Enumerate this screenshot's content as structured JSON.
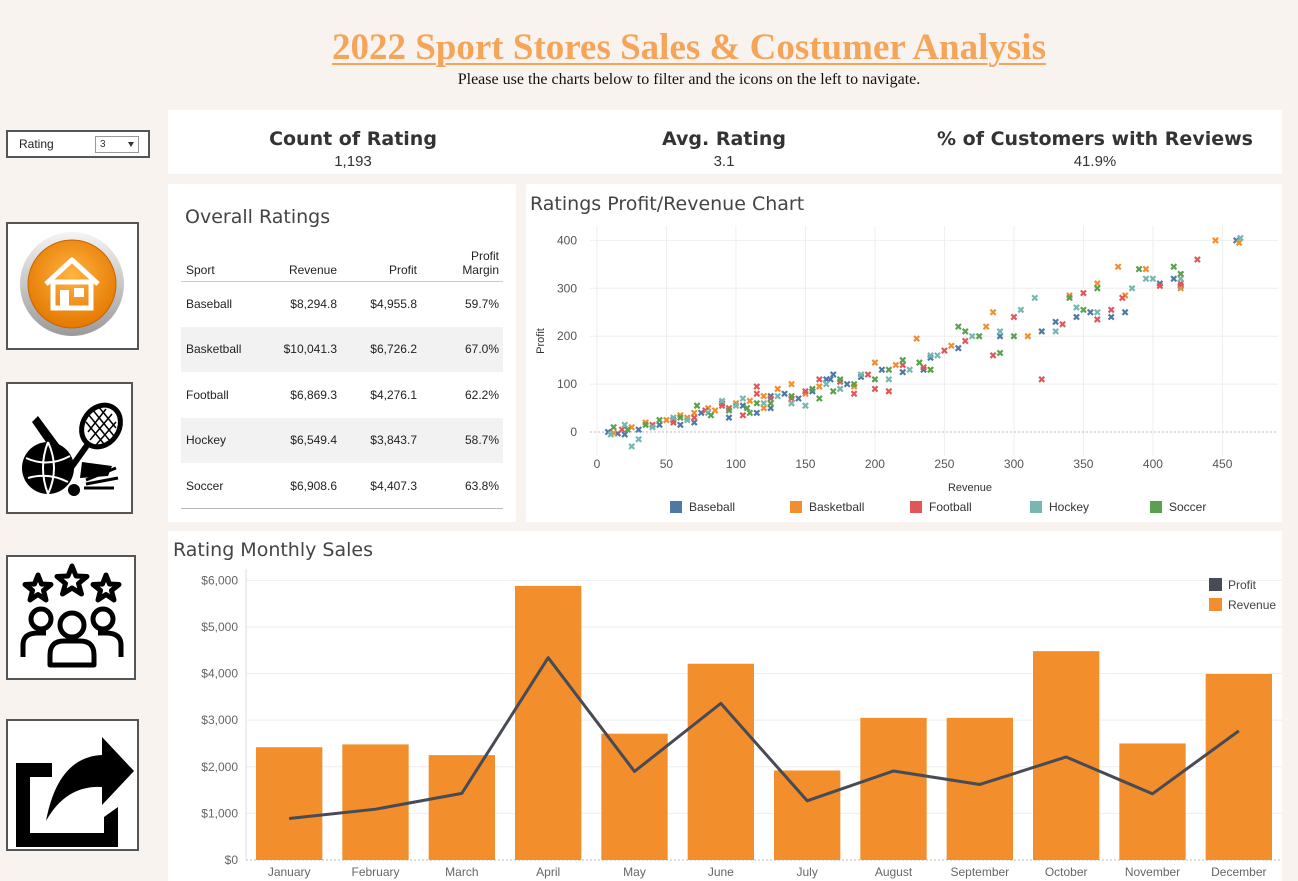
{
  "header": {
    "title": "2022 Sport Stores Sales & Costumer Analysis",
    "subtitle": "Please use the charts below to filter and the icons on the left to navigate."
  },
  "filter": {
    "label": "Rating",
    "value": "3"
  },
  "nav": [
    {
      "name": "home-icon"
    },
    {
      "name": "sports-icon"
    },
    {
      "name": "customers-rating-icon"
    },
    {
      "name": "share-icon"
    }
  ],
  "kpis": [
    {
      "title": "Count of Rating",
      "value": "1,193"
    },
    {
      "title": "Avg. Rating",
      "value": "3.1"
    },
    {
      "title": "% of Customers with Reviews",
      "value": "41.9%"
    }
  ],
  "overall": {
    "title": "Overall Ratings",
    "columns": [
      "Sport",
      "Revenue",
      "Profit",
      "Profit Margin"
    ],
    "rows": [
      [
        "Baseball",
        "$8,294.8",
        "$4,955.8",
        "59.7%"
      ],
      [
        "Basketball",
        "$10,041.3",
        "$6,726.2",
        "67.0%"
      ],
      [
        "Football",
        "$6,869.3",
        "$4,276.1",
        "62.2%"
      ],
      [
        "Hockey",
        "$6,549.4",
        "$3,843.7",
        "58.7%"
      ],
      [
        "Soccer",
        "$6,908.6",
        "$4,407.3",
        "63.8%"
      ]
    ]
  },
  "colors": {
    "Baseball": "#4e79a7",
    "Basketball": "#f28e2b",
    "Football": "#e15759",
    "Hockey": "#76b7b2",
    "Soccer": "#59a14f",
    "profit_line": "#474b55",
    "revenue_bar": "#f28e2b"
  },
  "chart_data": [
    {
      "type": "scatter",
      "title": "Ratings Profit/Revenue Chart",
      "xlabel": "Revenue",
      "ylabel": "Profit",
      "xlim": [
        -5,
        490
      ],
      "ylim": [
        -50,
        430
      ],
      "xticks": [
        0,
        50,
        100,
        150,
        200,
        250,
        300,
        350,
        400,
        450
      ],
      "yticks": [
        0,
        100,
        200,
        300,
        400
      ],
      "legend_position": "bottom",
      "series": [
        {
          "name": "Baseball",
          "points": [
            [
              8,
              0
            ],
            [
              15,
              -3
            ],
            [
              30,
              5
            ],
            [
              45,
              15
            ],
            [
              55,
              25
            ],
            [
              70,
              20
            ],
            [
              75,
              40
            ],
            [
              90,
              60
            ],
            [
              95,
              30
            ],
            [
              105,
              55
            ],
            [
              115,
              40
            ],
            [
              125,
              75
            ],
            [
              135,
              80
            ],
            [
              145,
              70
            ],
            [
              155,
              85
            ],
            [
              165,
              110
            ],
            [
              170,
              120
            ],
            [
              180,
              100
            ],
            [
              190,
              115
            ],
            [
              205,
              130
            ],
            [
              220,
              125
            ],
            [
              235,
              130
            ],
            [
              240,
              155
            ],
            [
              260,
              175
            ],
            [
              290,
              200
            ],
            [
              320,
              210
            ],
            [
              330,
              230
            ],
            [
              345,
              240
            ],
            [
              355,
              250
            ],
            [
              370,
              240
            ],
            [
              380,
              250
            ],
            [
              405,
              310
            ],
            [
              415,
              320
            ],
            [
              420,
              305
            ],
            [
              460,
              400
            ],
            [
              168,
              110
            ],
            [
              125,
              50
            ],
            [
              60,
              15
            ],
            [
              20,
              -5
            ]
          ]
        },
        {
          "name": "Basketball",
          "points": [
            [
              12,
              -2
            ],
            [
              25,
              10
            ],
            [
              35,
              20
            ],
            [
              50,
              25
            ],
            [
              60,
              35
            ],
            [
              65,
              30
            ],
            [
              80,
              50
            ],
            [
              85,
              45
            ],
            [
              100,
              60
            ],
            [
              110,
              65
            ],
            [
              120,
              50
            ],
            [
              130,
              90
            ],
            [
              140,
              60
            ],
            [
              150,
              80
            ],
            [
              160,
              95
            ],
            [
              175,
              90
            ],
            [
              185,
              95
            ],
            [
              200,
              145
            ],
            [
              215,
              140
            ],
            [
              230,
              195
            ],
            [
              240,
              130
            ],
            [
              255,
              180
            ],
            [
              280,
              220
            ],
            [
              285,
              250
            ],
            [
              310,
              200
            ],
            [
              340,
              285
            ],
            [
              360,
              310
            ],
            [
              375,
              345
            ],
            [
              380,
              285
            ],
            [
              395,
              340
            ],
            [
              420,
              300
            ],
            [
              445,
              400
            ],
            [
              462,
              395
            ],
            [
              120,
              75
            ],
            [
              70,
              40
            ],
            [
              140,
              100
            ]
          ]
        },
        {
          "name": "Football",
          "points": [
            [
              18,
              5
            ],
            [
              40,
              15
            ],
            [
              55,
              20
            ],
            [
              70,
              30
            ],
            [
              78,
              45
            ],
            [
              95,
              50
            ],
            [
              105,
              35
            ],
            [
              115,
              80
            ],
            [
              125,
              70
            ],
            [
              140,
              70
            ],
            [
              150,
              85
            ],
            [
              160,
              110
            ],
            [
              175,
              105
            ],
            [
              185,
              80
            ],
            [
              195,
              120
            ],
            [
              210,
              85
            ],
            [
              220,
              140
            ],
            [
              235,
              135
            ],
            [
              250,
              170
            ],
            [
              265,
              190
            ],
            [
              285,
              160
            ],
            [
              320,
              110
            ],
            [
              335,
              225
            ],
            [
              350,
              290
            ],
            [
              360,
              235
            ],
            [
              370,
              255
            ],
            [
              378,
              280
            ],
            [
              405,
              305
            ],
            [
              420,
              310
            ],
            [
              432,
              360
            ],
            [
              300,
              240
            ],
            [
              90,
              55
            ],
            [
              200,
              90
            ],
            [
              115,
              95
            ]
          ]
        },
        {
          "name": "Hockey",
          "points": [
            [
              10,
              -5
            ],
            [
              20,
              15
            ],
            [
              25,
              -30
            ],
            [
              30,
              -15
            ],
            [
              40,
              10
            ],
            [
              55,
              30
            ],
            [
              65,
              25
            ],
            [
              80,
              40
            ],
            [
              90,
              65
            ],
            [
              100,
              55
            ],
            [
              105,
              70
            ],
            [
              120,
              60
            ],
            [
              130,
              75
            ],
            [
              140,
              60
            ],
            [
              150,
              55
            ],
            [
              165,
              100
            ],
            [
              175,
              90
            ],
            [
              190,
              120
            ],
            [
              210,
              110
            ],
            [
              225,
              130
            ],
            [
              245,
              160
            ],
            [
              270,
              200
            ],
            [
              290,
              210
            ],
            [
              305,
              255
            ],
            [
              315,
              280
            ],
            [
              330,
              210
            ],
            [
              345,
              260
            ],
            [
              360,
              250
            ],
            [
              385,
              300
            ],
            [
              395,
              320
            ],
            [
              420,
              320
            ],
            [
              463,
              405
            ],
            [
              400,
              320
            ],
            [
              240,
              160
            ]
          ]
        },
        {
          "name": "Soccer",
          "points": [
            [
              12,
              10
            ],
            [
              22,
              5
            ],
            [
              35,
              15
            ],
            [
              45,
              25
            ],
            [
              60,
              30
            ],
            [
              72,
              55
            ],
            [
              82,
              35
            ],
            [
              95,
              45
            ],
            [
              108,
              50
            ],
            [
              115,
              60
            ],
            [
              125,
              60
            ],
            [
              140,
              75
            ],
            [
              155,
              90
            ],
            [
              160,
              70
            ],
            [
              175,
              110
            ],
            [
              185,
              100
            ],
            [
              200,
              110
            ],
            [
              210,
              130
            ],
            [
              220,
              150
            ],
            [
              232,
              145
            ],
            [
              240,
              130
            ],
            [
              265,
              210
            ],
            [
              275,
              200
            ],
            [
              290,
              165
            ],
            [
              300,
              200
            ],
            [
              340,
              280
            ],
            [
              360,
              300
            ],
            [
              390,
              340
            ],
            [
              415,
              345
            ],
            [
              420,
              330
            ],
            [
              350,
              255
            ],
            [
              260,
              220
            ],
            [
              110,
              40
            ],
            [
              170,
              85
            ]
          ]
        }
      ]
    },
    {
      "type": "bar",
      "title": "Rating Monthly Sales",
      "categories": [
        "January",
        "February",
        "March",
        "April",
        "May",
        "June",
        "July",
        "August",
        "September",
        "October",
        "November",
        "December"
      ],
      "ylim": [
        0,
        6200
      ],
      "yticks": [
        0,
        1000,
        2000,
        3000,
        4000,
        5000,
        6000
      ],
      "ytick_labels": [
        "$0",
        "$1,000",
        "$2,000",
        "$3,000",
        "$4,000",
        "$5,000",
        "$6,000"
      ],
      "legend_position": "top-right",
      "series": [
        {
          "name": "Revenue",
          "type": "bar",
          "values": [
            2420,
            2480,
            2250,
            5880,
            2710,
            4210,
            1920,
            3050,
            3050,
            4480,
            2500,
            3990
          ]
        },
        {
          "name": "Profit",
          "type": "line",
          "values": [
            890,
            1090,
            1430,
            4340,
            1900,
            3360,
            1270,
            1910,
            1620,
            2210,
            1420,
            2770
          ]
        }
      ]
    }
  ]
}
